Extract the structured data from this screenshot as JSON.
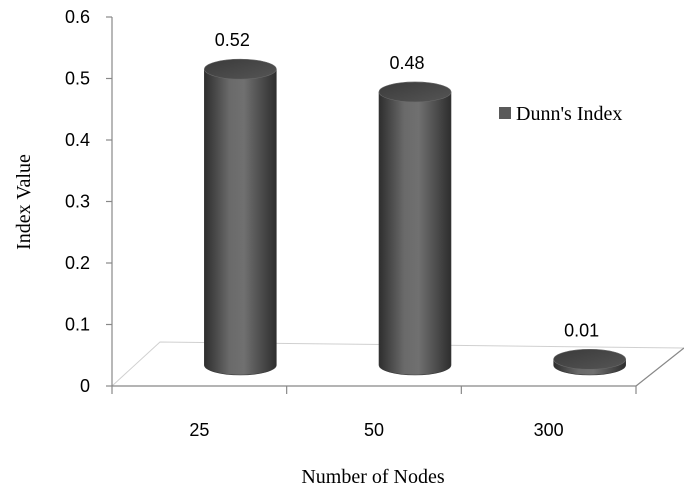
{
  "chart_data": {
    "type": "bar",
    "style": "3d-cylinder",
    "categories": [
      "25",
      "50",
      "300"
    ],
    "series": [
      {
        "name": "Dunn's Index",
        "values": [
          0.52,
          0.48,
          0.01
        ]
      }
    ],
    "data_labels": [
      "0.52",
      "0.48",
      "0.01"
    ],
    "y_ticks": [
      "0",
      "0.1",
      "0.2",
      "0.3",
      "0.4",
      "0.5",
      "0.6"
    ],
    "ylim": [
      0,
      0.6
    ],
    "xlabel": "Number of Nodes",
    "ylabel": "Index Value",
    "legend_position": "right",
    "grid": false,
    "colors": {
      "bar": "#5a5a5a",
      "bar_dark": "#2e2e2e",
      "bar_light": "#8a8a8a",
      "axis": "#888888",
      "floor": "#d0d0d0"
    }
  }
}
